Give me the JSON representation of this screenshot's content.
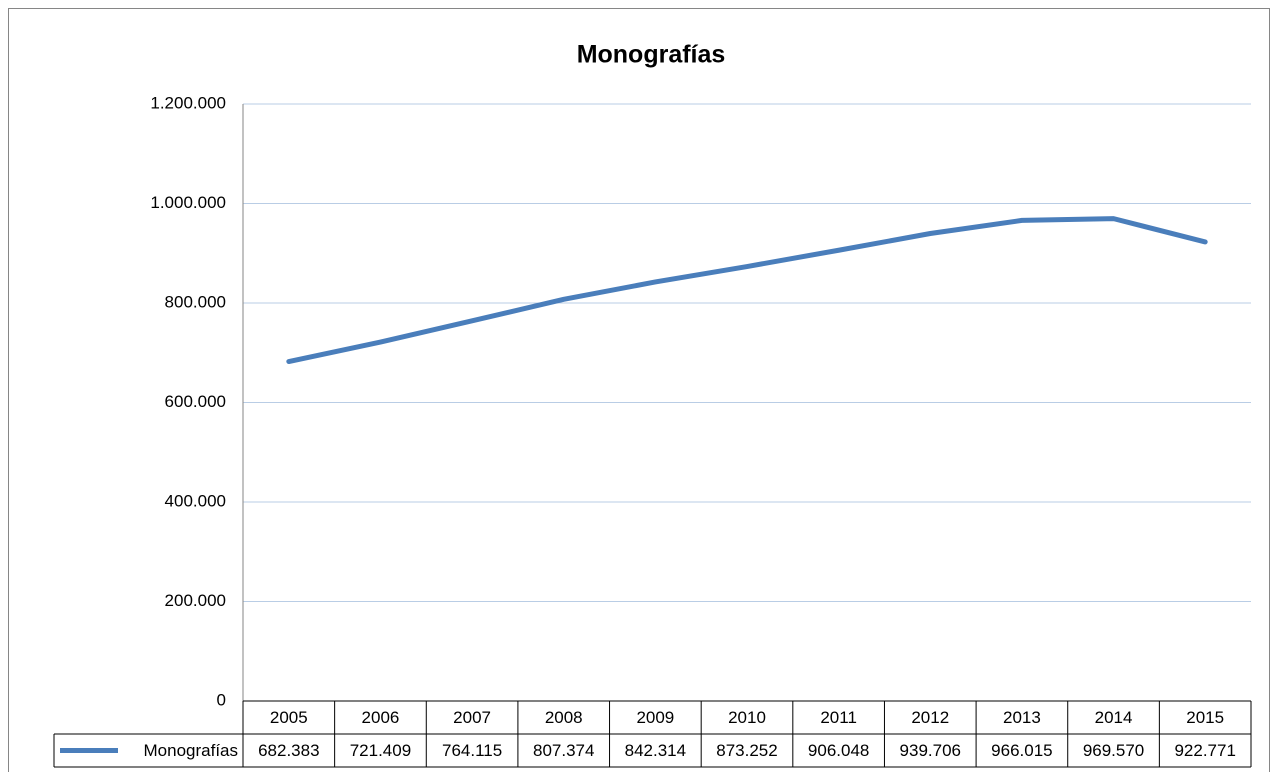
{
  "chart_data": {
    "type": "line",
    "title": "Monografías",
    "categories": [
      "2005",
      "2006",
      "2007",
      "2008",
      "2009",
      "2010",
      "2011",
      "2012",
      "2013",
      "2014",
      "2015"
    ],
    "series": [
      {
        "name": "Monografías",
        "color": "#4a7ebb",
        "values": [
          682383,
          721409,
          764115,
          807374,
          842314,
          873252,
          906048,
          939706,
          966015,
          969570,
          922771
        ],
        "value_labels": [
          "682.383",
          "721.409",
          "764.115",
          "807.374",
          "842.314",
          "873.252",
          "906.048",
          "939.706",
          "966.015",
          "969.570",
          "922.771"
        ]
      }
    ],
    "ylim": [
      0,
      1200000
    ],
    "yticks": [
      0,
      {
        "value": 200000,
        "label": "200.000"
      },
      {
        "value": 400000,
        "label": "400.000"
      },
      {
        "value": 600000,
        "label": "600.000"
      },
      {
        "value": 800000,
        "label": "800.000"
      },
      {
        "value": 1000000,
        "label": "1.000.000"
      },
      {
        "value": 1200000,
        "label": "1.200.000"
      }
    ],
    "grid": true,
    "data_table": true
  }
}
